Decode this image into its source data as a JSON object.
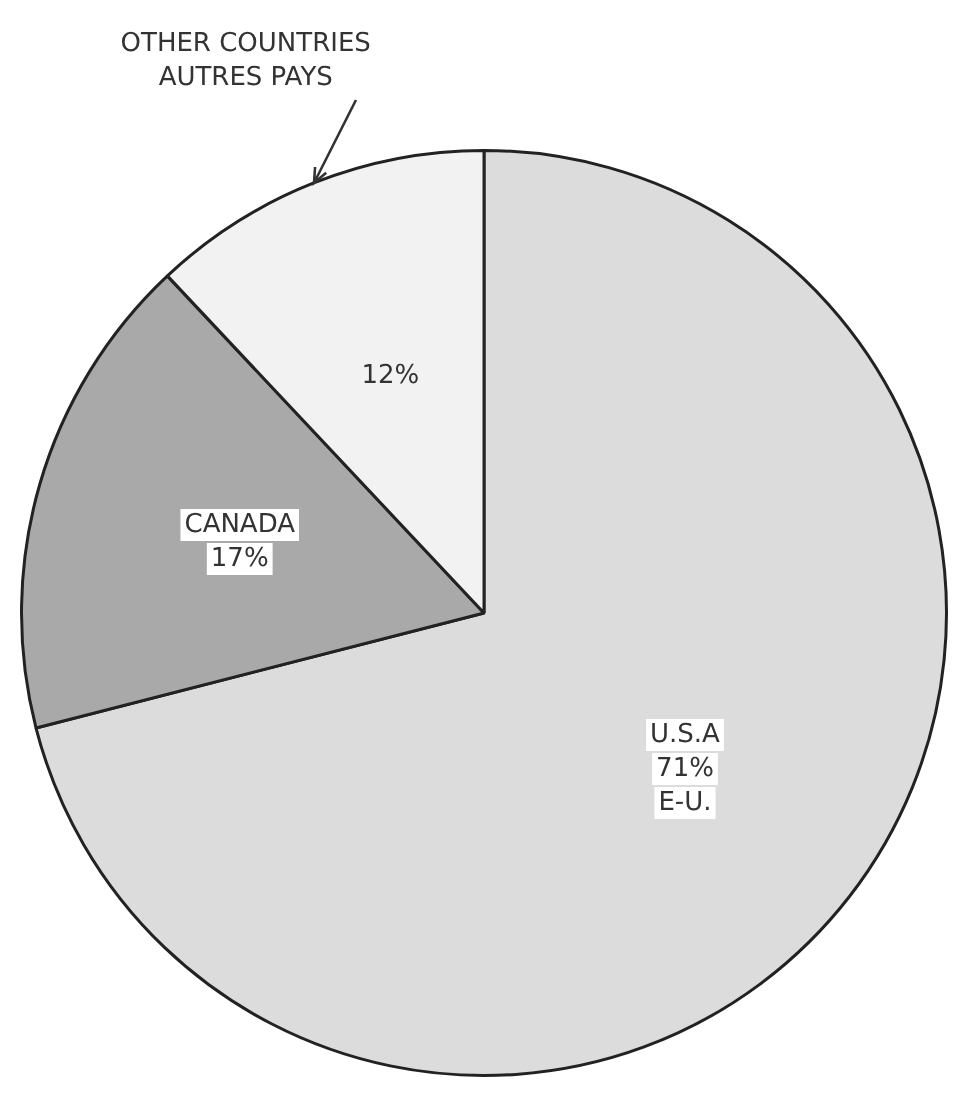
{
  "chart_data": {
    "type": "pie",
    "categories": [
      "U.S.A\nE-U.",
      "CANADA",
      "OTHER COUNTRIES\nAUTRES PAYS"
    ],
    "values": [
      71,
      17,
      12
    ],
    "colors": [
      "#dcdcdc",
      "#a9a9a9",
      "#f2f2f2"
    ],
    "value_labels": [
      "71%",
      "17%",
      "12%"
    ]
  }
}
